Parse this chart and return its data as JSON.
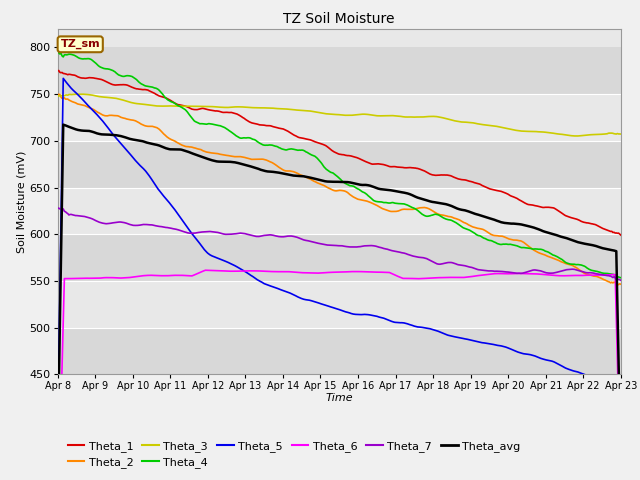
{
  "title": "TZ Soil Moisture",
  "xlabel": "Time",
  "ylabel": "Soil Moisture (mV)",
  "ylim": [
    450,
    820
  ],
  "background_color": "#f0f0f0",
  "plot_bg_color": "#e8e8e8",
  "annotation_text": "TZ_sm",
  "annotation_bg": "#ffffcc",
  "annotation_border": "#996600",
  "x_tick_labels": [
    "Apr 8",
    "Apr 9",
    "Apr 10",
    "Apr 11",
    "Apr 12",
    "Apr 13",
    "Apr 14",
    "Apr 15",
    "Apr 16",
    "Apr 17",
    "Apr 18",
    "Apr 19",
    "Apr 20",
    "Apr 21",
    "Apr 22",
    "Apr 23"
  ],
  "stripe_colors": [
    "#e8e8e8",
    "#d8d8d8"
  ],
  "series_colors": {
    "Theta_1": "#dd0000",
    "Theta_2": "#ff8800",
    "Theta_3": "#cccc00",
    "Theta_4": "#00cc00",
    "Theta_5": "#0000ee",
    "Theta_6": "#ff00ff",
    "Theta_7": "#9900cc",
    "Theta_avg": "#000000"
  }
}
